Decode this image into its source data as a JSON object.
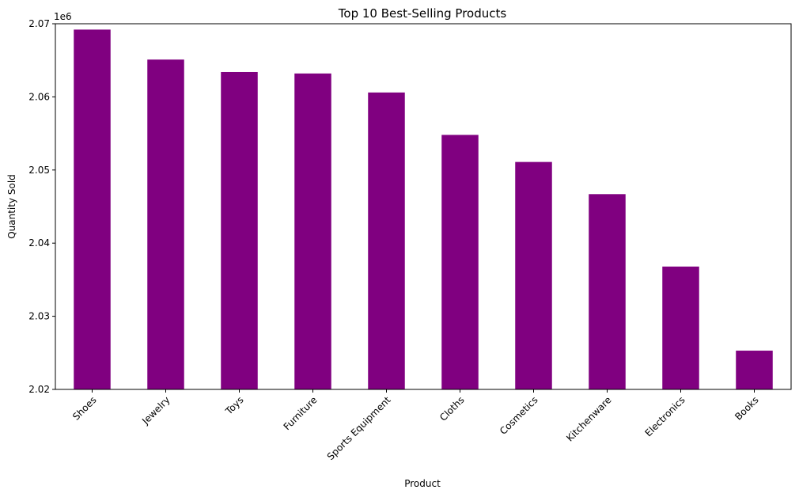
{
  "chart_data": {
    "type": "bar",
    "title": "Top 10 Best-Selling Products",
    "xlabel": "Product",
    "ylabel": "Quantity Sold",
    "y_offset_label": "1e6",
    "categories": [
      "Shoes",
      "Jewelry",
      "Toys",
      "Furniture",
      "Sports Equipment",
      "Cloths",
      "Cosmetics",
      "Kitchenware",
      "Electronics",
      "Books"
    ],
    "values": [
      2069200,
      2065100,
      2063400,
      2063200,
      2060600,
      2054800,
      2051100,
      2046700,
      2036800,
      2025300
    ],
    "ylim": [
      2020000,
      2070000
    ],
    "yticks": [
      2020000,
      2030000,
      2040000,
      2050000,
      2060000,
      2070000
    ],
    "ytick_labels": [
      "2.02",
      "2.03",
      "2.04",
      "2.05",
      "2.06",
      "2.07"
    ],
    "bar_color": "#800080",
    "grid": false,
    "legend": "none",
    "xtick_rotation": 45
  }
}
